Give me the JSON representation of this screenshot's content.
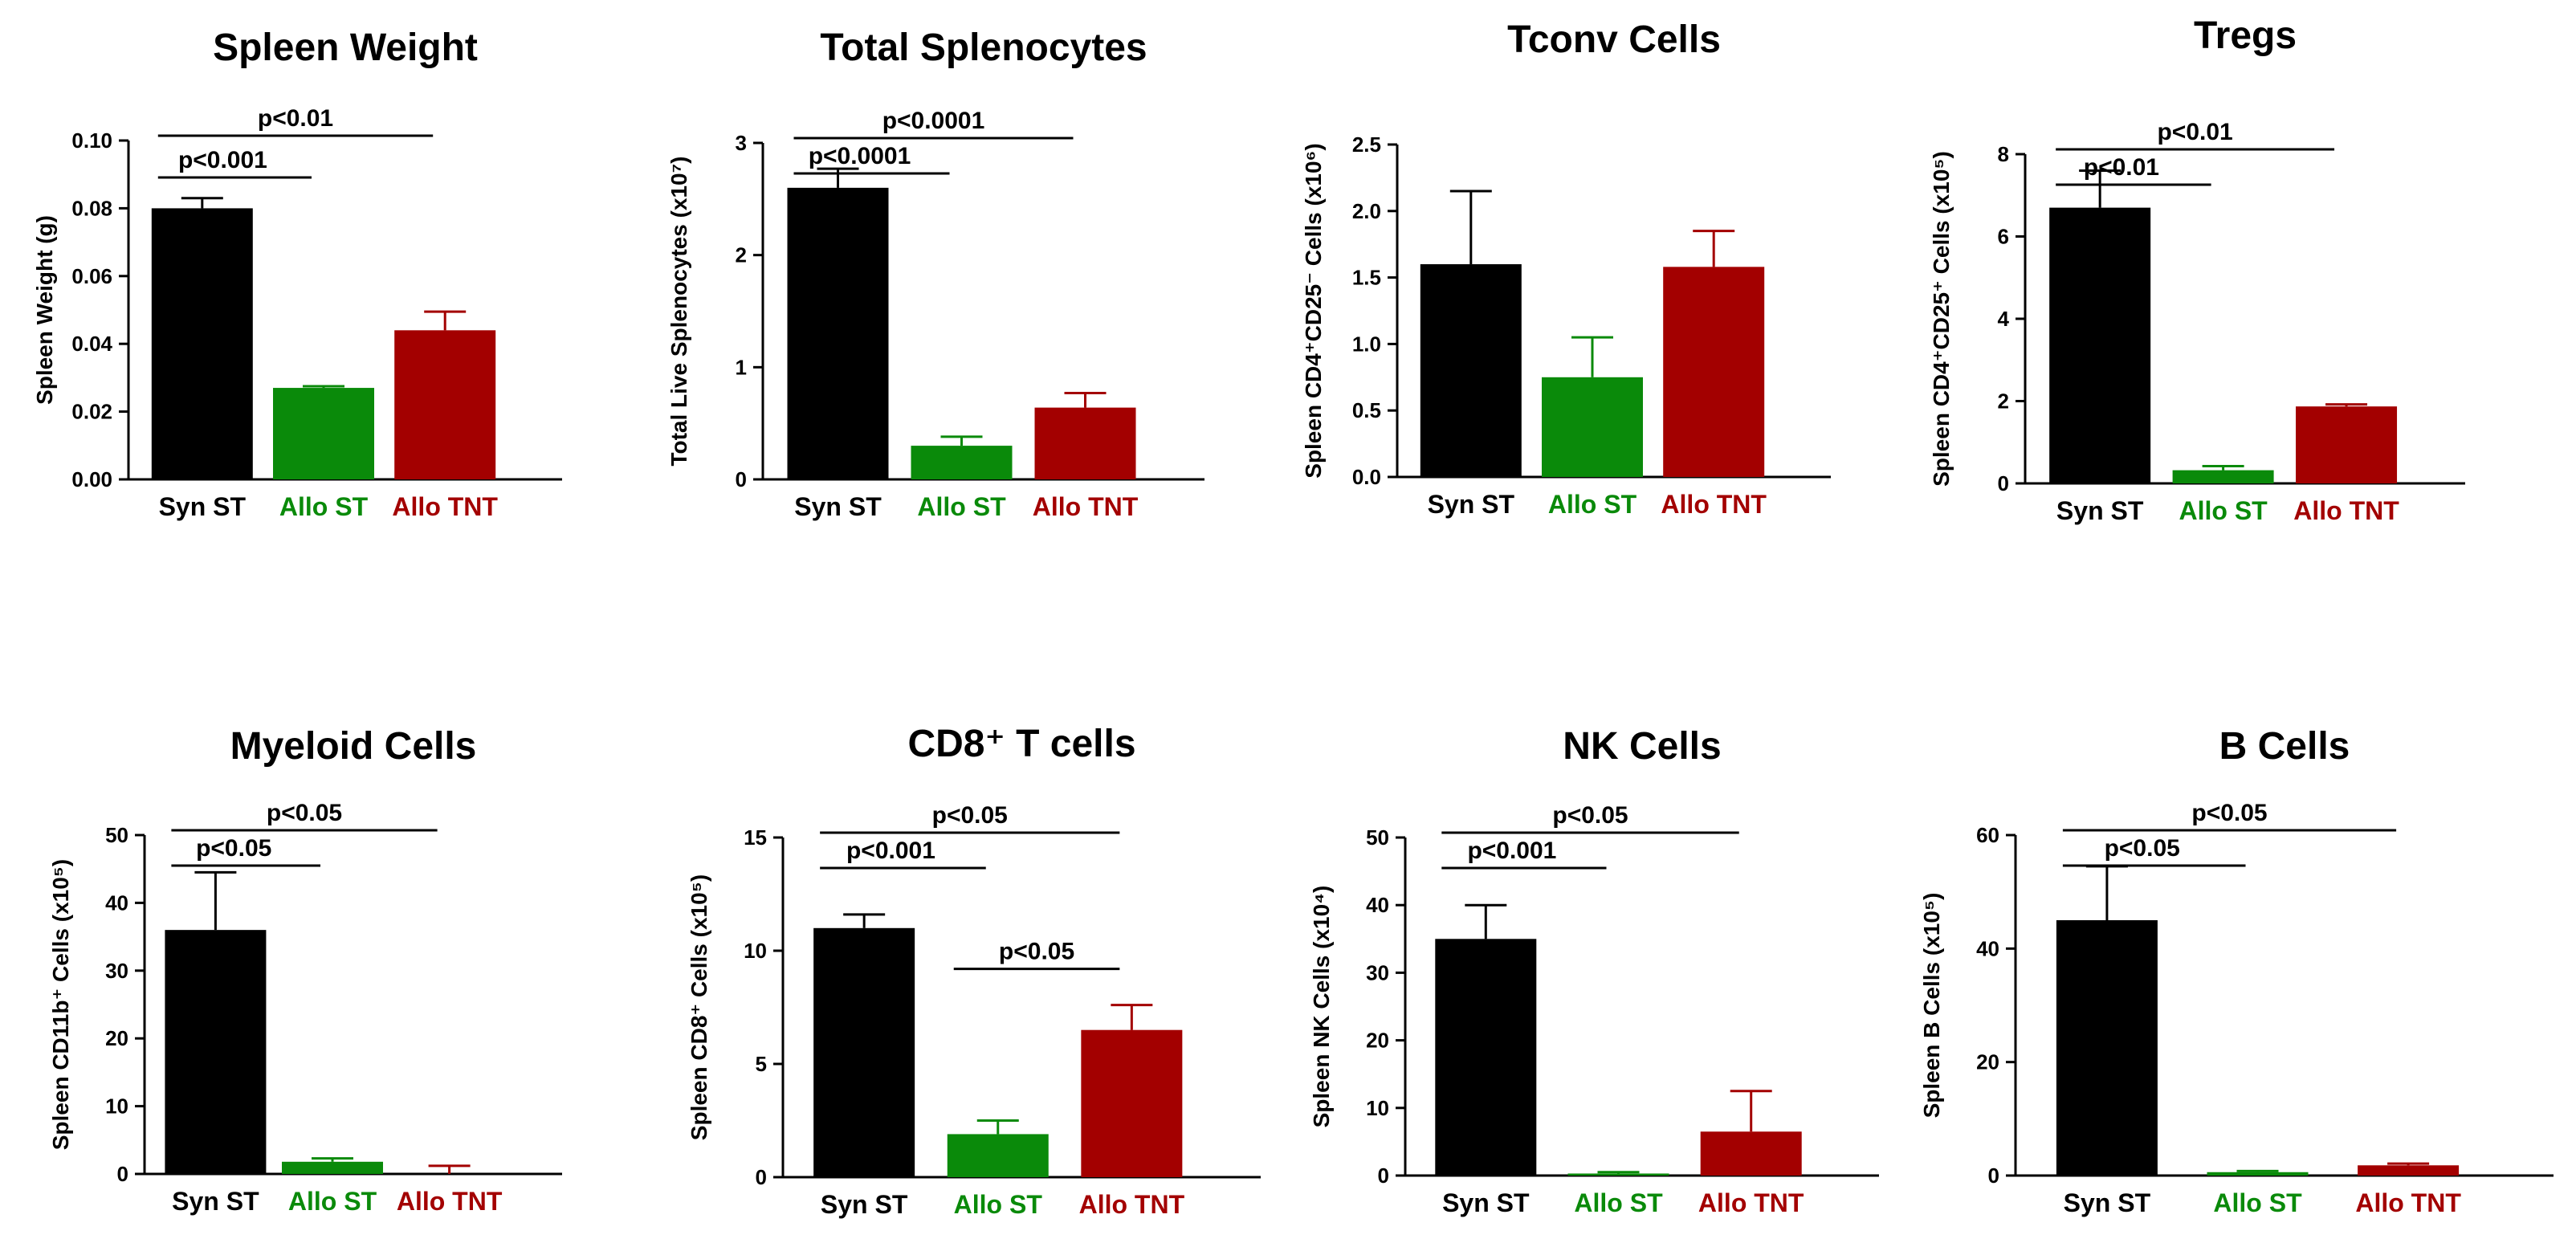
{
  "colors": {
    "Syn ST": "#000000",
    "Allo ST": "#0a8a0a",
    "Allo TNT": "#a30000"
  },
  "chart_data": [
    {
      "type": "bar",
      "title": "Spleen Weight",
      "ylabel": "Spleen Weight (g)",
      "categories": [
        "Syn ST",
        "Allo ST",
        "Allo TNT"
      ],
      "values": [
        0.08,
        0.027,
        0.044
      ],
      "errors": [
        0.003,
        0.0005,
        0.0055
      ],
      "ylim": [
        0,
        0.1
      ],
      "yticks": [
        0,
        0.02,
        0.04,
        0.06,
        0.08,
        0.1
      ],
      "ytick_labels": [
        "0.00",
        "0.02",
        "0.04",
        "0.06",
        "0.08",
        "0.10"
      ],
      "annotations": [
        {
          "from": 0,
          "to": 1,
          "text": "p<0.001"
        },
        {
          "from": 0,
          "to": 2,
          "text": "p<0.01"
        }
      ]
    },
    {
      "type": "bar",
      "title": "Total Splenocytes",
      "ylabel": "Total Live Splenocytes (x10⁷)",
      "categories": [
        "Syn ST",
        "Allo ST",
        "Allo TNT"
      ],
      "values": [
        2.6,
        0.3,
        0.64
      ],
      "errors": [
        0.17,
        0.08,
        0.13
      ],
      "ylim": [
        0,
        3
      ],
      "yticks": [
        0,
        1,
        2,
        3
      ],
      "ytick_labels": [
        "0",
        "1",
        "2",
        "3"
      ],
      "annotations": [
        {
          "from": 0,
          "to": 1,
          "text": "p<0.0001"
        },
        {
          "from": 0,
          "to": 2,
          "text": "p<0.0001"
        }
      ]
    },
    {
      "type": "bar",
      "title": "Tconv Cells",
      "ylabel": "Spleen CD4⁺CD25⁻ Cells (x10⁶)",
      "categories": [
        "Syn ST",
        "Allo ST",
        "Allo TNT"
      ],
      "values": [
        1.6,
        0.75,
        1.58
      ],
      "errors": [
        0.55,
        0.3,
        0.27
      ],
      "ylim": [
        0,
        2.5
      ],
      "yticks": [
        0,
        0.5,
        1,
        1.5,
        2,
        2.5
      ],
      "ytick_labels": [
        "0.0",
        "0.5",
        "1.0",
        "1.5",
        "2.0",
        "2.5"
      ],
      "annotations": []
    },
    {
      "type": "bar",
      "title": "Tregs",
      "ylabel": "Spleen CD4⁺CD25⁺ Cells (x10⁵)",
      "categories": [
        "Syn ST",
        "Allo ST",
        "Allo TNT"
      ],
      "values": [
        6.7,
        0.32,
        1.87
      ],
      "errors": [
        0.9,
        0.1,
        0.05
      ],
      "ylim": [
        0,
        8
      ],
      "yticks": [
        0,
        2,
        4,
        6,
        8
      ],
      "ytick_labels": [
        "0",
        "2",
        "4",
        "6",
        "8"
      ],
      "annotations": [
        {
          "from": 0,
          "to": 1,
          "text": "p<0.01"
        },
        {
          "from": 0,
          "to": 2,
          "text": "p<0.01"
        }
      ]
    },
    {
      "type": "bar",
      "title": "Myeloid Cells",
      "ylabel": "Spleen CD11b⁺ Cells (x10⁵)",
      "categories": [
        "Syn ST",
        "Allo ST",
        "Allo TNT"
      ],
      "values": [
        36,
        1.8,
        0
      ],
      "errors": [
        8.5,
        0.5,
        1.2
      ],
      "ylim": [
        0,
        50
      ],
      "yticks": [
        0,
        10,
        20,
        30,
        40,
        50
      ],
      "ytick_labels": [
        "0",
        "10",
        "20",
        "30",
        "40",
        "50"
      ],
      "annotations": [
        {
          "from": 0,
          "to": 1,
          "text": "p<0.05"
        },
        {
          "from": 0,
          "to": 2,
          "text": "p<0.05"
        }
      ]
    },
    {
      "type": "bar",
      "title": "CD8⁺ T cells",
      "ylabel": "Spleen CD8⁺ Cells (x10⁵)",
      "categories": [
        "Syn ST",
        "Allo ST",
        "Allo TNT"
      ],
      "values": [
        11,
        1.9,
        6.5
      ],
      "errors": [
        0.6,
        0.6,
        1.1
      ],
      "ylim": [
        0,
        15
      ],
      "yticks": [
        0,
        5,
        10,
        15
      ],
      "ytick_labels": [
        "0",
        "5",
        "10",
        "15"
      ],
      "annotations": [
        {
          "from": 0,
          "to": 1,
          "text": "p<0.001"
        },
        {
          "from": 0,
          "to": 2,
          "text": "p<0.05"
        },
        {
          "from": 1,
          "to": 2,
          "text": "p<0.05"
        }
      ]
    },
    {
      "type": "bar",
      "title": "NK Cells",
      "ylabel": "Spleen NK Cells (x10⁴)",
      "categories": [
        "Syn ST",
        "Allo ST",
        "Allo TNT"
      ],
      "values": [
        35,
        0.3,
        6.5
      ],
      "errors": [
        5,
        0.2,
        6
      ],
      "ylim": [
        0,
        50
      ],
      "yticks": [
        0,
        10,
        20,
        30,
        40,
        50
      ],
      "ytick_labels": [
        "0",
        "10",
        "20",
        "30",
        "40",
        "50"
      ],
      "annotations": [
        {
          "from": 0,
          "to": 1,
          "text": "p<0.001"
        },
        {
          "from": 0,
          "to": 2,
          "text": "p<0.05"
        }
      ]
    },
    {
      "type": "bar",
      "title": "B Cells",
      "ylabel": "Spleen B Cells (x10⁵)",
      "categories": [
        "Syn ST",
        "Allo ST",
        "Allo TNT"
      ],
      "values": [
        45,
        0.6,
        1.8
      ],
      "errors": [
        9.5,
        0.2,
        0.3
      ],
      "ylim": [
        0,
        60
      ],
      "yticks": [
        0,
        20,
        40,
        60
      ],
      "ytick_labels": [
        "0",
        "20",
        "40",
        "60"
      ],
      "annotations": [
        {
          "from": 0,
          "to": 1,
          "text": "p<0.05"
        },
        {
          "from": 0,
          "to": 2,
          "text": "p<0.05"
        }
      ]
    }
  ]
}
